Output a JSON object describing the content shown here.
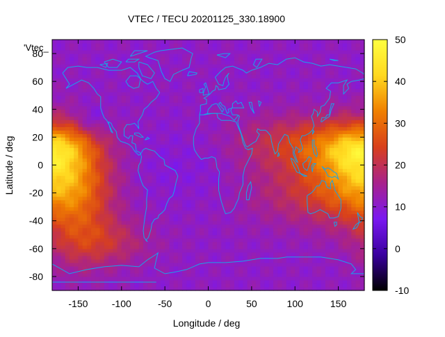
{
  "chart_data": {
    "type": "heatmap",
    "title": "VTEC / TECU 20201125_330.18900",
    "xlabel": "Longitude / deg",
    "ylabel": "Latitude / deg",
    "key_label": "'Vtec_",
    "xlim": [
      -180,
      180
    ],
    "ylim": [
      -90,
      90
    ],
    "x_ticks": [
      -150,
      -100,
      -50,
      0,
      50,
      100,
      150
    ],
    "y_ticks": [
      -80,
      -60,
      -40,
      -20,
      0,
      20,
      40,
      60,
      80
    ],
    "colorbar": {
      "min": -10,
      "max": 50,
      "ticks": [
        -10,
        0,
        10,
        20,
        30,
        40,
        50
      ],
      "palette": [
        "#000000",
        "#3a00a0",
        "#7a18f0",
        "#a8228c",
        "#d8401c",
        "#f08000",
        "#ffd820",
        "#ffff40"
      ]
    },
    "grid": false,
    "colorbar_position": "right"
  }
}
